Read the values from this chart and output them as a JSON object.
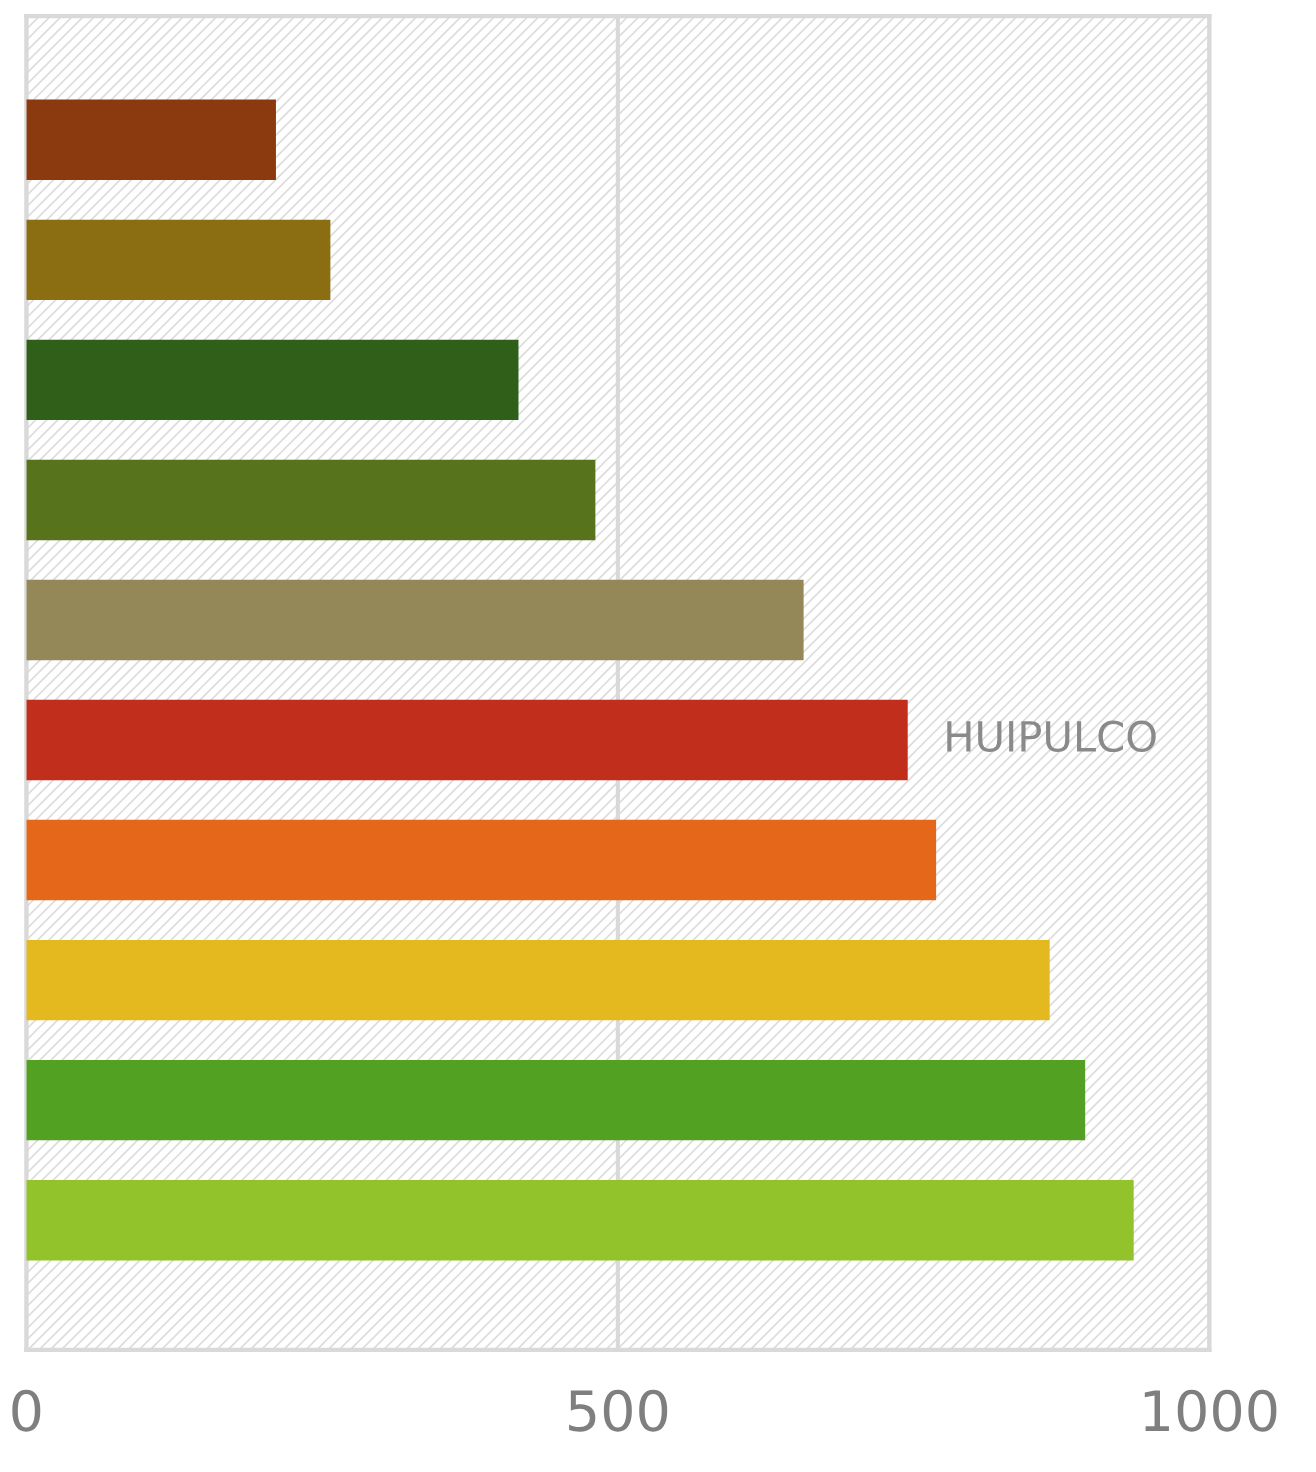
{
  "chart_data": {
    "type": "bar",
    "orientation": "horizontal",
    "categories": [
      null,
      null,
      null,
      null,
      null,
      "HUIPULCO",
      null,
      null,
      null,
      null
    ],
    "values": [
      211,
      257,
      416,
      481,
      657,
      745,
      769,
      865,
      895,
      936
    ],
    "colors": [
      "#8b3a0f",
      "#8c6e12",
      "#2f5f19",
      "#57731c",
      "#958858",
      "#c22e1c",
      "#e5671a",
      "#e3b91f",
      "#52a122",
      "#92c32a"
    ],
    "xlim": [
      0,
      1000
    ],
    "xticks": [
      0,
      500,
      1000
    ],
    "grid": "x"
  }
}
